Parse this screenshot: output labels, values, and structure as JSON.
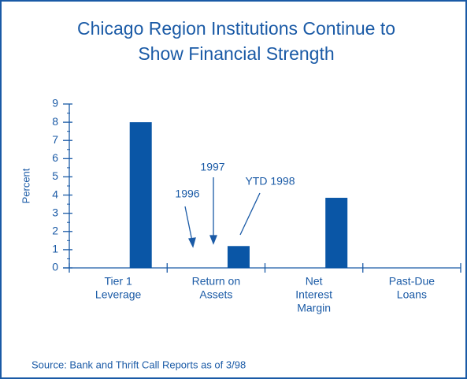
{
  "chart_data": {
    "type": "bar",
    "title": [
      "Chicago Region Institutions Continue to",
      "Show Financial Strength"
    ],
    "ylabel": "Percent",
    "categories": [
      [
        "Tier  1",
        "Leverage"
      ],
      [
        "Return on",
        "Assets"
      ],
      [
        "Net",
        "Interest",
        "Margin"
      ],
      [
        "Past-Due",
        "Loans"
      ]
    ],
    "values": [
      8.0,
      1.2,
      3.85,
      null
    ],
    "color": "#0a56a6",
    "ylim": [
      0,
      9
    ],
    "yticks": [
      0,
      1,
      2,
      3,
      4,
      5,
      6,
      7,
      8,
      9
    ],
    "annotations": [
      "1996",
      "1997",
      "YTD 1998"
    ],
    "source": "Source: Bank and Thrift Call Reports as of 3/98"
  }
}
